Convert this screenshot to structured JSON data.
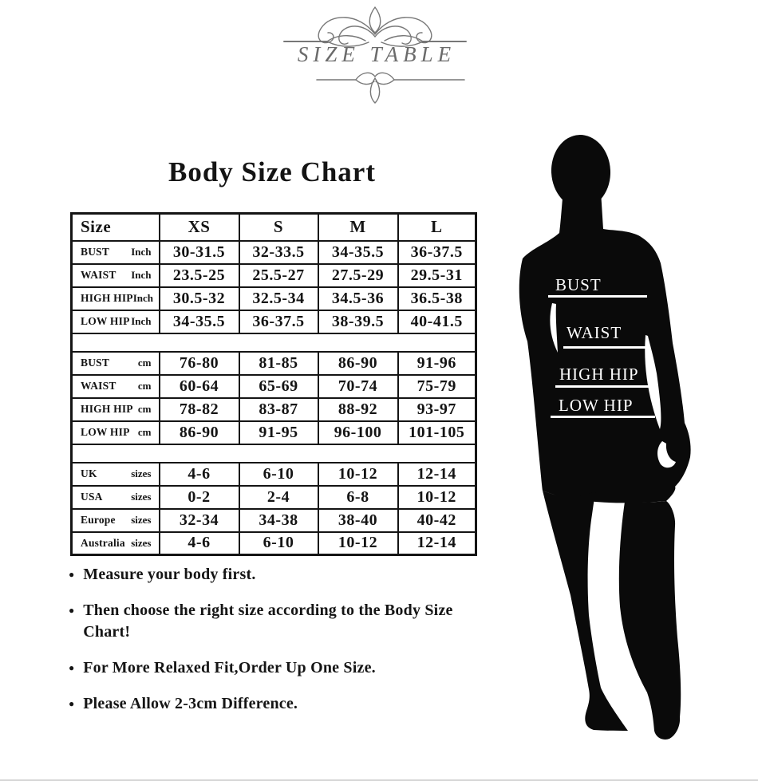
{
  "ornament": {
    "title": "SIZE TABLE",
    "color": "#6b6b6b"
  },
  "chart_data": {
    "type": "table",
    "title": "Body Size Chart",
    "columns": [
      "Size",
      "XS",
      "S",
      "M",
      "L"
    ],
    "sections": [
      {
        "unit_group": "Inch",
        "rows": [
          {
            "label": "BUST",
            "unit": "Inch",
            "values": [
              "30-31.5",
              "32-33.5",
              "34-35.5",
              "36-37.5"
            ]
          },
          {
            "label": "WAIST",
            "unit": "Inch",
            "values": [
              "23.5-25",
              "25.5-27",
              "27.5-29",
              "29.5-31"
            ]
          },
          {
            "label": "HIGH HIP",
            "unit": "Inch",
            "values": [
              "30.5-32",
              "32.5-34",
              "34.5-36",
              "36.5-38"
            ]
          },
          {
            "label": "LOW HIP",
            "unit": "Inch",
            "values": [
              "34-35.5",
              "36-37.5",
              "38-39.5",
              "40-41.5"
            ]
          }
        ]
      },
      {
        "unit_group": "cm",
        "rows": [
          {
            "label": "BUST",
            "unit": "cm",
            "values": [
              "76-80",
              "81-85",
              "86-90",
              "91-96"
            ]
          },
          {
            "label": "WAIST",
            "unit": "cm",
            "values": [
              "60-64",
              "65-69",
              "70-74",
              "75-79"
            ]
          },
          {
            "label": "HIGH HIP",
            "unit": "cm",
            "values": [
              "78-82",
              "83-87",
              "88-92",
              "93-97"
            ]
          },
          {
            "label": "LOW HIP",
            "unit": "cm",
            "values": [
              "86-90",
              "91-95",
              "96-100",
              "101-105"
            ]
          }
        ]
      },
      {
        "unit_group": "sizes",
        "rows": [
          {
            "label": "UK",
            "unit": "sizes",
            "values": [
              "4-6",
              "6-10",
              "10-12",
              "12-14"
            ]
          },
          {
            "label": "USA",
            "unit": "sizes",
            "values": [
              "0-2",
              "2-4",
              "6-8",
              "10-12"
            ]
          },
          {
            "label": "Europe",
            "unit": "sizes",
            "values": [
              "32-34",
              "34-38",
              "38-40",
              "40-42"
            ]
          },
          {
            "label": "Australia",
            "unit": "sizes",
            "values": [
              "4-6",
              "6-10",
              "10-12",
              "12-14"
            ]
          }
        ]
      }
    ]
  },
  "figure": {
    "labels": [
      "BUST",
      "WAIST",
      "HIGH HIP",
      "LOW HIP"
    ]
  },
  "notes": {
    "bullet": "●",
    "items": [
      "Measure your body first.",
      "Then choose the right size according to the Body Size Chart!",
      "For More Relaxed Fit,Order Up One Size.",
      "Please Allow 2-3cm Difference."
    ]
  },
  "colors": {
    "text": "#141414",
    "table_border": "#141414",
    "figure_fill": "#0a0a0a",
    "ornament_gray": "#777777"
  }
}
